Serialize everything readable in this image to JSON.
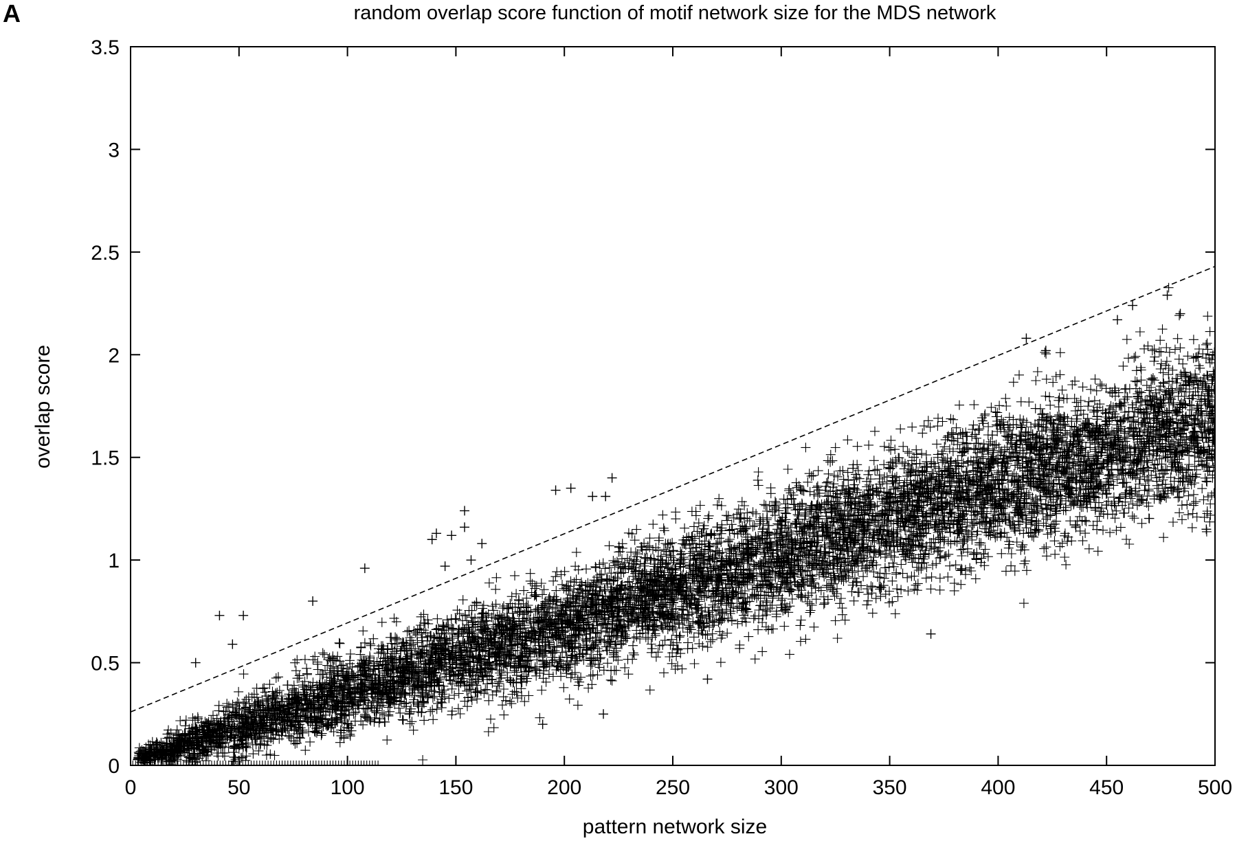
{
  "panel_label": "A",
  "chart_data": {
    "type": "scatter",
    "title": "random overlap score function of motif network size for the MDS network",
    "xlabel": "pattern network size",
    "ylabel": "overlap score",
    "xlim": [
      0,
      500
    ],
    "ylim": [
      0,
      3.5
    ],
    "xticks": [
      0,
      50,
      100,
      150,
      200,
      250,
      300,
      350,
      400,
      450,
      500
    ],
    "yticks": [
      0,
      0.5,
      1,
      1.5,
      2,
      2.5,
      3,
      3.5
    ],
    "xtick_labels": [
      "0",
      "50",
      "100",
      "150",
      "200",
      "250",
      "300",
      "350",
      "400",
      "450",
      "500"
    ],
    "ytick_labels": [
      "0",
      "0.5",
      "1",
      "1.5",
      "2",
      "2.5",
      "3",
      "3.5"
    ],
    "grid": false,
    "legend": "none",
    "marker": "+",
    "marker_color": "#000000",
    "scatter_trend": {
      "description_values": "dense band of random overlap scores rising roughly linearly with pattern network size",
      "x_range": [
        3,
        500
      ],
      "mean_at_x": [
        [
          5,
          0.04
        ],
        [
          50,
          0.18
        ],
        [
          100,
          0.35
        ],
        [
          150,
          0.52
        ],
        [
          200,
          0.68
        ],
        [
          250,
          0.85
        ],
        [
          300,
          1.02
        ],
        [
          350,
          1.2
        ],
        [
          400,
          1.37
        ],
        [
          450,
          1.52
        ],
        [
          500,
          1.68
        ]
      ],
      "spread_sd_at_x": [
        [
          5,
          0.02
        ],
        [
          50,
          0.07
        ],
        [
          100,
          0.1
        ],
        [
          150,
          0.12
        ],
        [
          200,
          0.13
        ],
        [
          250,
          0.14
        ],
        [
          300,
          0.15
        ],
        [
          350,
          0.16
        ],
        [
          400,
          0.17
        ],
        [
          450,
          0.18
        ],
        [
          500,
          0.2
        ]
      ],
      "point_count": 9000
    },
    "outliers": [
      {
        "x": 41,
        "y": 0.73
      },
      {
        "x": 52,
        "y": 0.73
      },
      {
        "x": 30,
        "y": 0.5
      },
      {
        "x": 47,
        "y": 0.59
      },
      {
        "x": 84,
        "y": 0.8
      },
      {
        "x": 108,
        "y": 0.96
      },
      {
        "x": 139,
        "y": 1.1
      },
      {
        "x": 141,
        "y": 1.13
      },
      {
        "x": 145,
        "y": 0.97
      },
      {
        "x": 148,
        "y": 1.12
      },
      {
        "x": 154,
        "y": 1.24
      },
      {
        "x": 154,
        "y": 1.16
      },
      {
        "x": 157,
        "y": 1.0
      },
      {
        "x": 162,
        "y": 1.08
      },
      {
        "x": 190,
        "y": 0.2
      },
      {
        "x": 196,
        "y": 1.34
      },
      {
        "x": 203,
        "y": 1.35
      },
      {
        "x": 213,
        "y": 1.31
      },
      {
        "x": 219,
        "y": 1.31
      },
      {
        "x": 222,
        "y": 1.4
      },
      {
        "x": 218,
        "y": 0.25
      },
      {
        "x": 266,
        "y": 0.42
      },
      {
        "x": 369,
        "y": 0.64
      },
      {
        "x": 413,
        "y": 2.08
      },
      {
        "x": 422,
        "y": 2.02
      },
      {
        "x": 455,
        "y": 2.17
      },
      {
        "x": 462,
        "y": 2.24
      },
      {
        "x": 478,
        "y": 2.29
      },
      {
        "x": 484,
        "y": 2.2
      },
      {
        "x": 496,
        "y": 1.15
      }
    ],
    "floor_points": {
      "y": 0,
      "x_range": [
        1,
        115
      ]
    },
    "series": [
      {
        "type": "line",
        "style": "dashed",
        "x": [
          0,
          500
        ],
        "y": [
          0.26,
          2.43
        ]
      }
    ]
  }
}
